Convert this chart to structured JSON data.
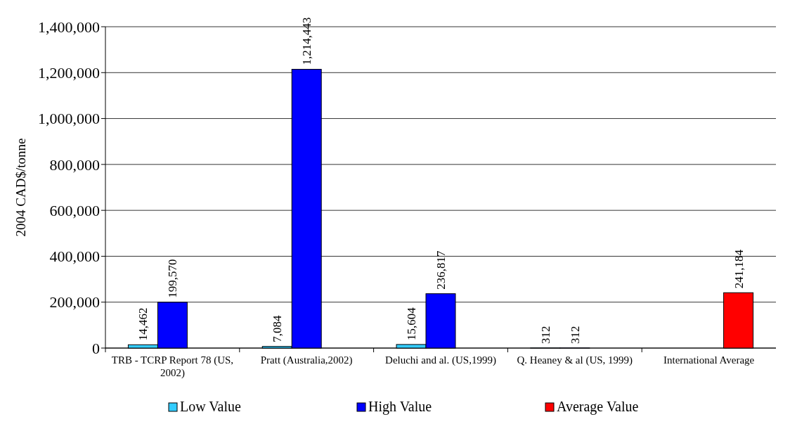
{
  "chart_data": {
    "type": "bar",
    "ylabel": "2004 CAD$/tonne",
    "categories": [
      "TRB - TCRP Report 78 (US, 2002)",
      "Pratt (Australia,2002)",
      "Deluchi and al. (US,1999)",
      "Q. Heaney & al (US, 1999)",
      "International Average"
    ],
    "series": [
      {
        "name": "Low Value",
        "color": "#33ccff",
        "values": [
          14462,
          7084,
          15604,
          312,
          null
        ],
        "value_labels": [
          "14,462",
          "7,084",
          "15,604",
          "312",
          null
        ]
      },
      {
        "name": "High Value",
        "color": "#0000ff",
        "values": [
          199570,
          1214443,
          236817,
          312,
          null
        ],
        "value_labels": [
          "199,570",
          "1,214,443",
          "236,817",
          "312",
          null
        ]
      },
      {
        "name": "Average Value",
        "color": "#ff0000",
        "values": [
          null,
          null,
          null,
          null,
          241184
        ],
        "value_labels": [
          null,
          null,
          null,
          null,
          "241,184"
        ]
      }
    ],
    "ylim": [
      0,
      1400000
    ],
    "yticks": [
      {
        "value": 0,
        "label": "0"
      },
      {
        "value": 200000,
        "label": "200,000"
      },
      {
        "value": 400000,
        "label": "400,000"
      },
      {
        "value": 600000,
        "label": "600,000"
      },
      {
        "value": 800000,
        "label": "800,000"
      },
      {
        "value": 1000000,
        "label": "1,000,000"
      },
      {
        "value": 1200000,
        "label": "1,200,000"
      },
      {
        "value": 1400000,
        "label": "1,400,000"
      }
    ],
    "grid": "y",
    "legend": "bottom"
  }
}
